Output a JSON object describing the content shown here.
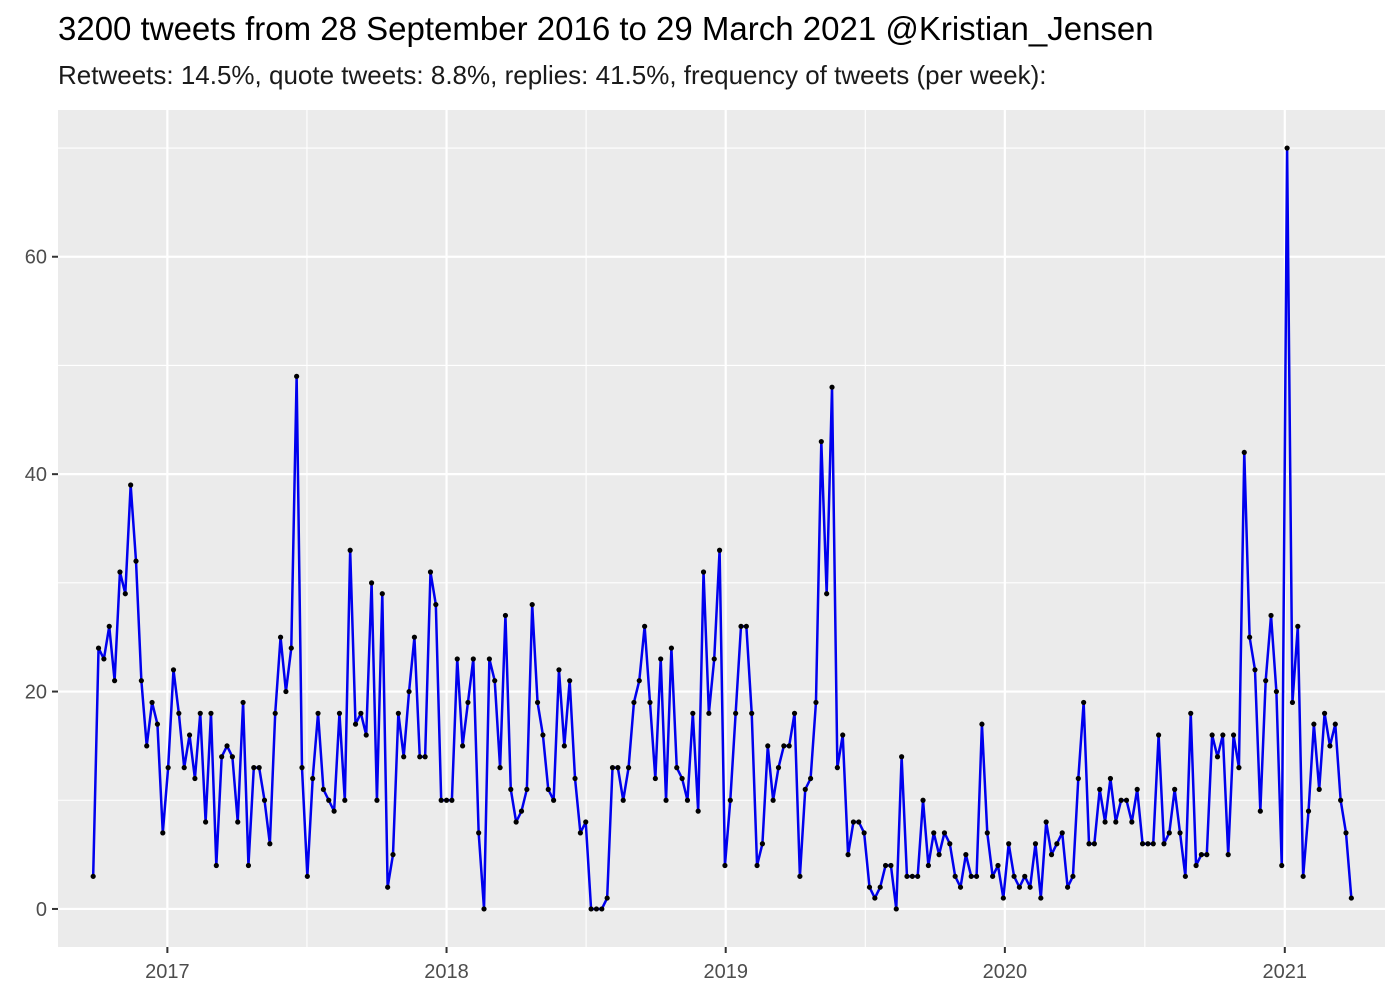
{
  "chart_data": {
    "type": "line",
    "title": "3200 tweets from 28 September 2016 to 29 March 2021 @Kristian_Jensen",
    "subtitle": "Retweets: 14.5%, quote tweets: 8.8%, replies: 41.5%, frequency of tweets (per week):",
    "xlabel": "",
    "ylabel": "",
    "x_start": "2016-09-26",
    "x_step_days": 7,
    "xlim": [
      "2016-08-11",
      "2021-05-12"
    ],
    "ylim": [
      -3.5,
      73.5
    ],
    "x_ticks": [
      {
        "label": "2017",
        "date": "2017-01-01"
      },
      {
        "label": "2018",
        "date": "2018-01-01"
      },
      {
        "label": "2019",
        "date": "2019-01-01"
      },
      {
        "label": "2020",
        "date": "2020-01-01"
      },
      {
        "label": "2021",
        "date": "2021-01-01"
      }
    ],
    "y_ticks": [
      0,
      20,
      40,
      60
    ],
    "grid": true,
    "series": [
      {
        "color": "#0000ee",
        "point_color": "#000000",
        "values": [
          3,
          24,
          23,
          26,
          21,
          31,
          29,
          39,
          32,
          21,
          15,
          19,
          17,
          7,
          13,
          22,
          18,
          13,
          16,
          12,
          18,
          8,
          18,
          4,
          14,
          15,
          14,
          8,
          19,
          4,
          13,
          13,
          10,
          6,
          18,
          25,
          20,
          24,
          49,
          13,
          3,
          12,
          18,
          11,
          10,
          9,
          18,
          10,
          33,
          17,
          18,
          16,
          30,
          10,
          29,
          2,
          5,
          18,
          14,
          20,
          25,
          14,
          14,
          31,
          28,
          10,
          10,
          10,
          23,
          15,
          19,
          23,
          7,
          0,
          23,
          21,
          13,
          27,
          11,
          8,
          9,
          11,
          28,
          19,
          16,
          11,
          10,
          22,
          15,
          21,
          12,
          7,
          8,
          0,
          0,
          0,
          1,
          13,
          13,
          10,
          13,
          19,
          21,
          26,
          19,
          12,
          23,
          10,
          24,
          13,
          12,
          10,
          18,
          9,
          31,
          18,
          23,
          33,
          4,
          10,
          18,
          26,
          26,
          18,
          4,
          6,
          15,
          10,
          13,
          15,
          15,
          18,
          3,
          11,
          12,
          19,
          43,
          29,
          48,
          13,
          16,
          5,
          8,
          8,
          7,
          2,
          1,
          2,
          4,
          4,
          0,
          14,
          3,
          3,
          3,
          10,
          4,
          7,
          5,
          7,
          6,
          3,
          2,
          5,
          3,
          3,
          17,
          7,
          3,
          4,
          1,
          6,
          3,
          2,
          3,
          2,
          6,
          1,
          8,
          5,
          6,
          7,
          2,
          3,
          12,
          19,
          6,
          6,
          11,
          8,
          12,
          8,
          10,
          10,
          8,
          11,
          6,
          6,
          6,
          16,
          6,
          7,
          11,
          7,
          3,
          18,
          4,
          5,
          5,
          16,
          14,
          16,
          5,
          16,
          13,
          42,
          25,
          22,
          9,
          21,
          27,
          20,
          4,
          70,
          19,
          26,
          3,
          9,
          17,
          11,
          18,
          15,
          17,
          10,
          7,
          1
        ]
      }
    ]
  }
}
